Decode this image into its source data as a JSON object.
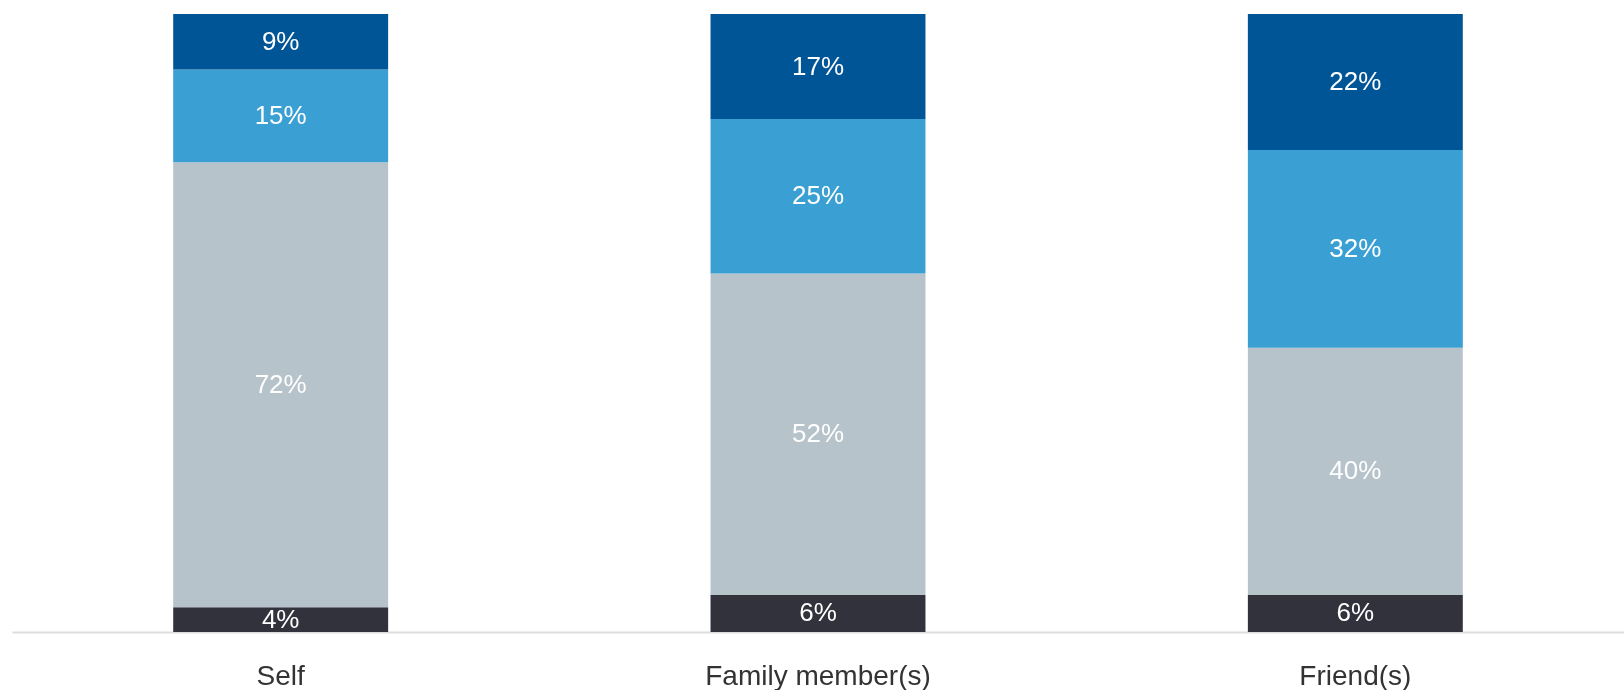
{
  "chart_data": {
    "type": "bar",
    "stacked": true,
    "categories": [
      "Self",
      "Family member(s)",
      "Friend(s)"
    ],
    "series": [
      {
        "color": "#32323c",
        "values": [
          4,
          6,
          6
        ],
        "value_labels": [
          "4%",
          "6%",
          "6%"
        ]
      },
      {
        "color": "#b6c3cb",
        "values": [
          72,
          52,
          40
        ],
        "value_labels": [
          "72%",
          "52%",
          "40%"
        ]
      },
      {
        "color": "#3a9fd2",
        "values": [
          15,
          25,
          32
        ],
        "value_labels": [
          "15%",
          "25%",
          "32%"
        ]
      },
      {
        "color": "#005596",
        "values": [
          9,
          17,
          22
        ],
        "value_labels": [
          "9%",
          "17%",
          "22%"
        ]
      }
    ]
  }
}
